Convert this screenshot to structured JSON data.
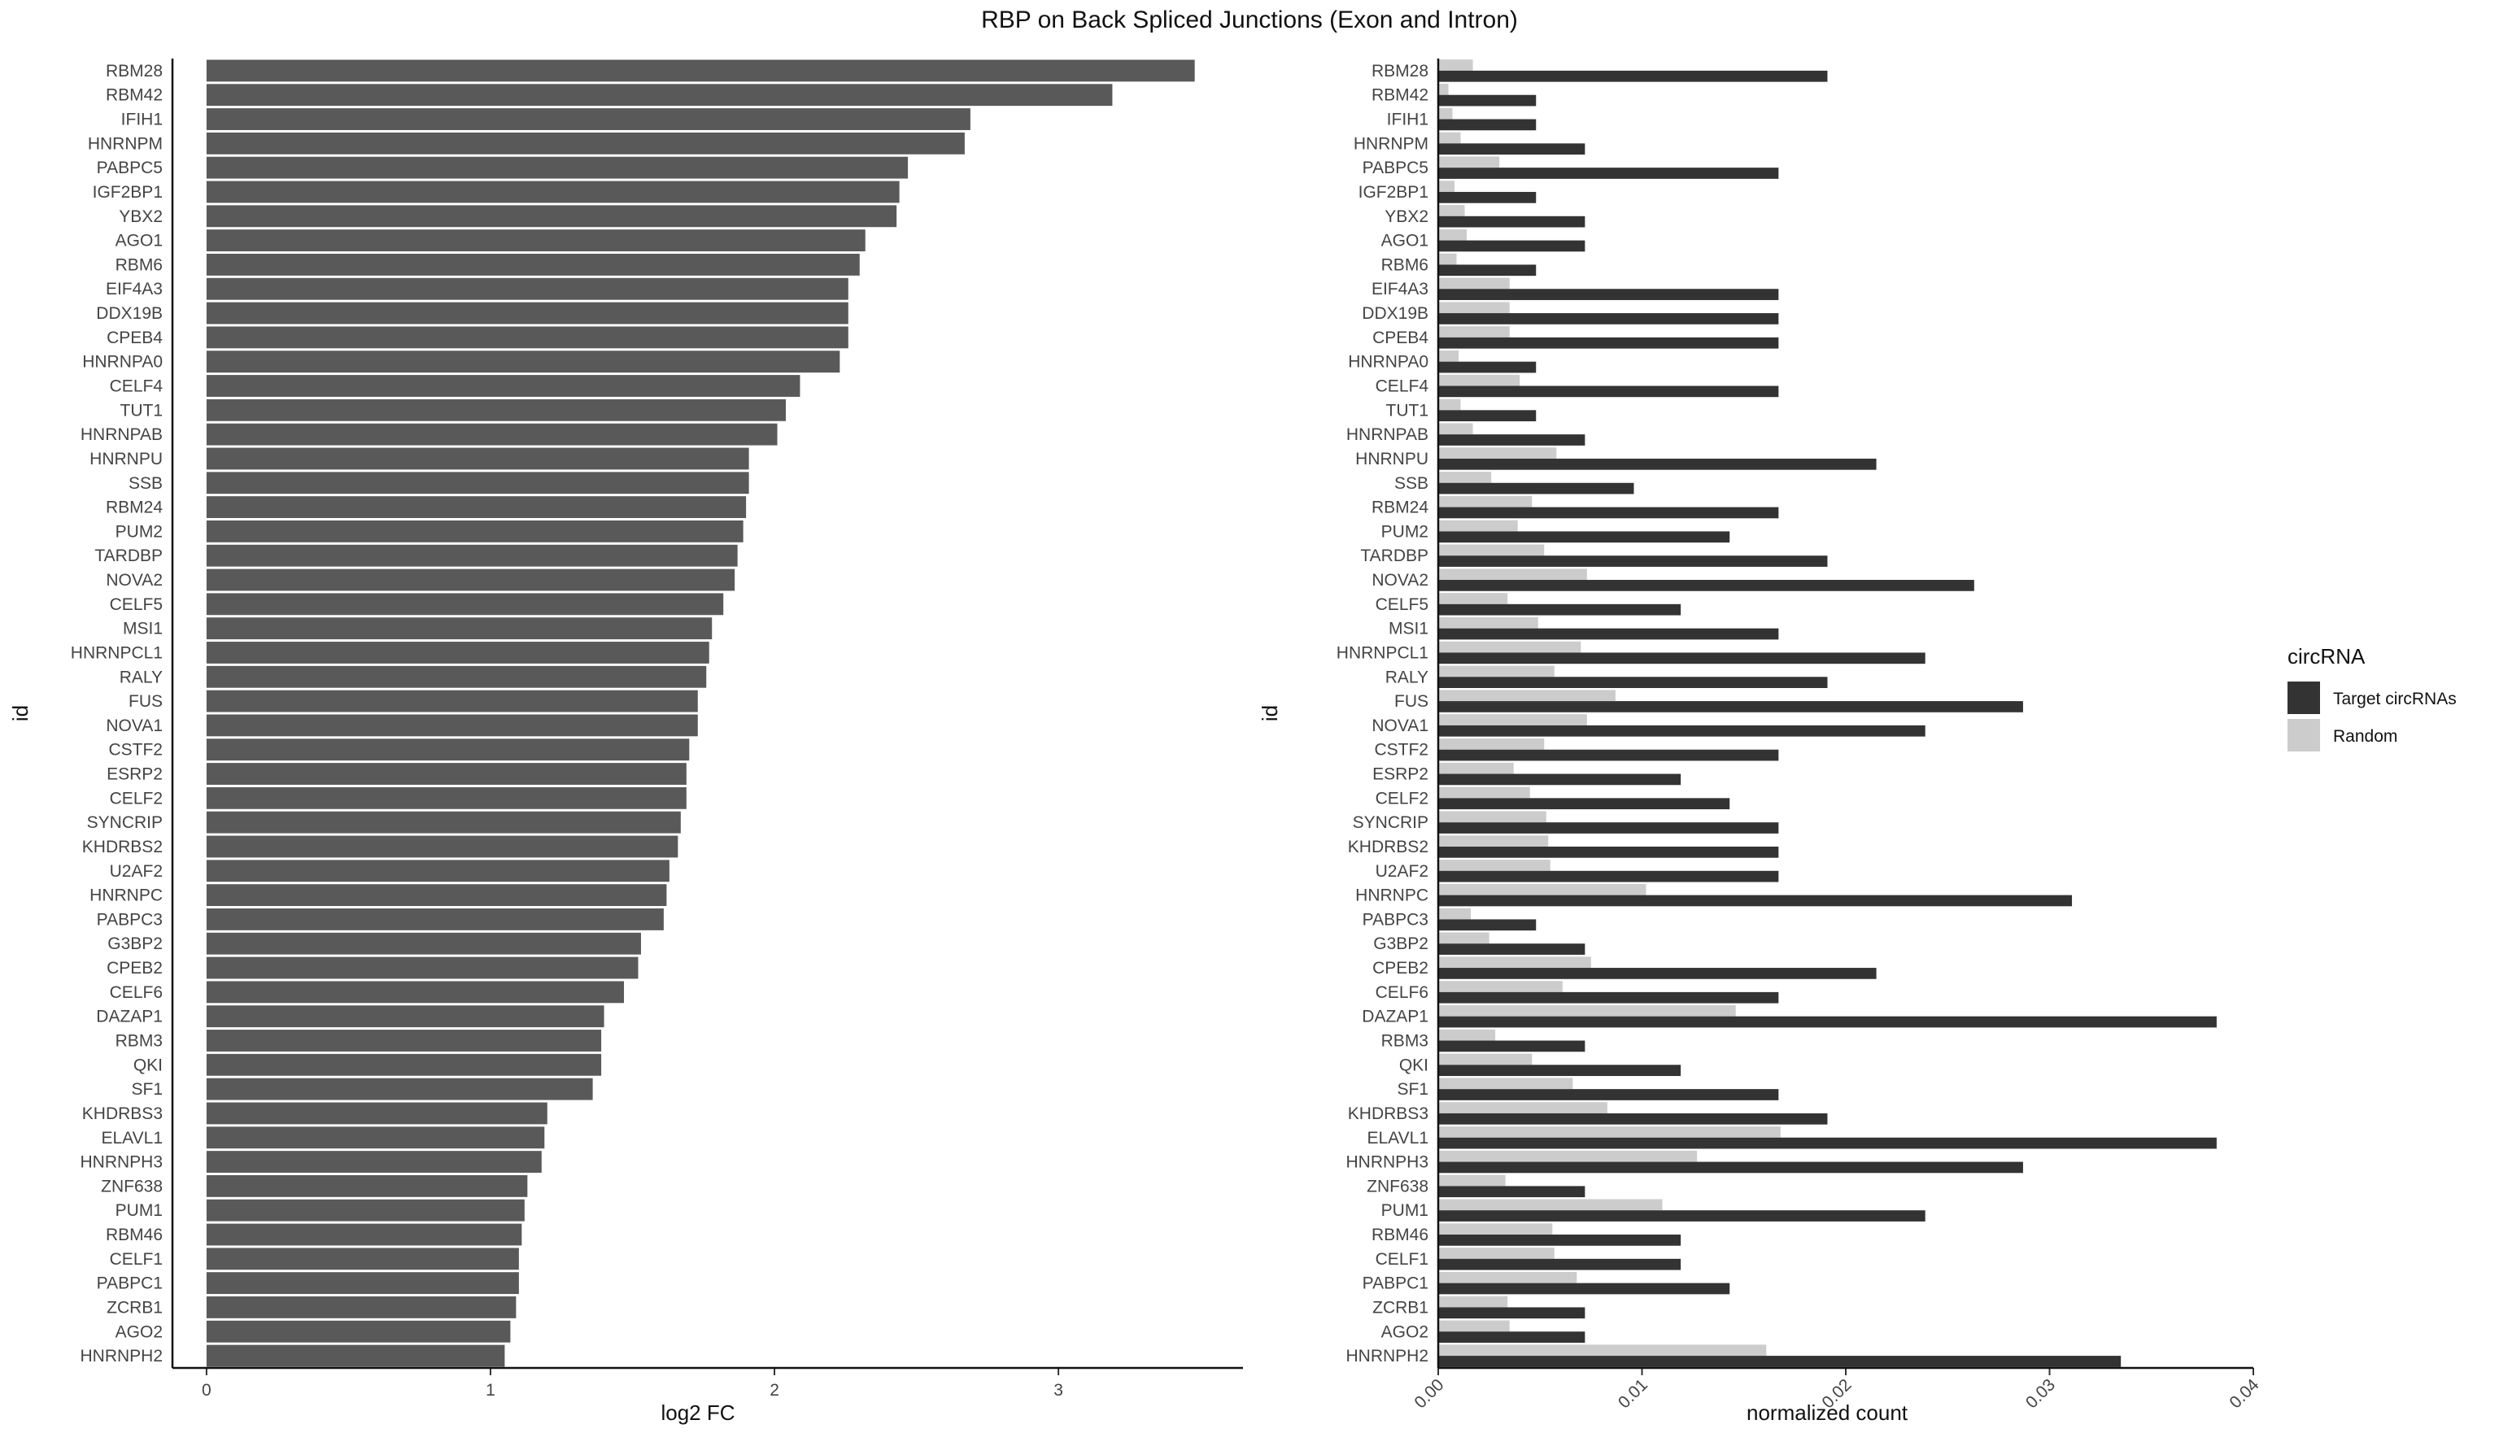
{
  "figure": {
    "title": "RBP on Back Spliced Junctions (Exon and Intron)"
  },
  "chart_data": [
    {
      "type": "bar",
      "orientation": "horizontal",
      "xlabel": "log2 FC",
      "ylabel": "id",
      "xlim": [
        -0.12,
        3.65
      ],
      "xticks": [
        "0",
        "1",
        "2",
        "3"
      ],
      "bar_color": "#595959",
      "categories": [
        "RBM28",
        "RBM42",
        "IFIH1",
        "HNRNPM",
        "PABPC5",
        "IGF2BP1",
        "YBX2",
        "AGO1",
        "RBM6",
        "EIF4A3",
        "DDX19B",
        "CPEB4",
        "HNRNPA0",
        "CELF4",
        "TUT1",
        "HNRNPAB",
        "HNRNPU",
        "SSB",
        "RBM24",
        "PUM2",
        "TARDBP",
        "NOVA2",
        "CELF5",
        "MSI1",
        "HNRNPCL1",
        "RALY",
        "FUS",
        "NOVA1",
        "CSTF2",
        "ESRP2",
        "CELF2",
        "SYNCRIP",
        "KHDRBS2",
        "U2AF2",
        "HNRNPC",
        "PABPC3",
        "G3BP2",
        "CPEB2",
        "CELF6",
        "DAZAP1",
        "RBM3",
        "QKI",
        "SF1",
        "KHDRBS3",
        "ELAVL1",
        "HNRNPH3",
        "ZNF638",
        "PUM1",
        "RBM46",
        "CELF1",
        "PABPC1",
        "ZCRB1",
        "AGO2",
        "HNRNPH2"
      ],
      "values": [
        3.48,
        3.19,
        2.69,
        2.67,
        2.47,
        2.44,
        2.43,
        2.32,
        2.3,
        2.26,
        2.26,
        2.26,
        2.23,
        2.09,
        2.04,
        2.01,
        1.91,
        1.91,
        1.9,
        1.89,
        1.87,
        1.86,
        1.82,
        1.78,
        1.77,
        1.76,
        1.73,
        1.73,
        1.7,
        1.69,
        1.69,
        1.67,
        1.66,
        1.63,
        1.62,
        1.61,
        1.53,
        1.52,
        1.47,
        1.4,
        1.39,
        1.39,
        1.36,
        1.2,
        1.19,
        1.18,
        1.13,
        1.12,
        1.11,
        1.1,
        1.1,
        1.09,
        1.07,
        1.05
      ]
    },
    {
      "type": "bar",
      "orientation": "horizontal",
      "grouped": true,
      "xlabel": "normalized count",
      "ylabel": "id",
      "xlim": [
        0,
        0.04
      ],
      "xticks": [
        "0.00",
        "0.01",
        "0.02",
        "0.03",
        "0.04"
      ],
      "categories": [
        "RBM28",
        "RBM42",
        "IFIH1",
        "HNRNPM",
        "PABPC5",
        "IGF2BP1",
        "YBX2",
        "AGO1",
        "RBM6",
        "EIF4A3",
        "DDX19B",
        "CPEB4",
        "HNRNPA0",
        "CELF4",
        "TUT1",
        "HNRNPAB",
        "HNRNPU",
        "SSB",
        "RBM24",
        "PUM2",
        "TARDBP",
        "NOVA2",
        "CELF5",
        "MSI1",
        "HNRNPCL1",
        "RALY",
        "FUS",
        "NOVA1",
        "CSTF2",
        "ESRP2",
        "CELF2",
        "SYNCRIP",
        "KHDRBS2",
        "U2AF2",
        "HNRNPC",
        "PABPC3",
        "G3BP2",
        "CPEB2",
        "CELF6",
        "DAZAP1",
        "RBM3",
        "QKI",
        "SF1",
        "KHDRBS3",
        "ELAVL1",
        "HNRNPH3",
        "ZNF638",
        "PUM1",
        "RBM46",
        "CELF1",
        "PABPC1",
        "ZCRB1",
        "AGO2",
        "HNRNPH2"
      ],
      "legend": {
        "title": "circRNA",
        "position": "right"
      },
      "series": [
        {
          "name": "Target circRNAs",
          "color": "#333333",
          "values": [
            0.0191,
            0.0048,
            0.0048,
            0.0072,
            0.0167,
            0.0048,
            0.0072,
            0.0072,
            0.0048,
            0.0167,
            0.0167,
            0.0167,
            0.0048,
            0.0167,
            0.0048,
            0.0072,
            0.0215,
            0.0096,
            0.0167,
            0.0143,
            0.0191,
            0.0263,
            0.0119,
            0.0167,
            0.0239,
            0.0191,
            0.0287,
            0.0239,
            0.0167,
            0.0119,
            0.0143,
            0.0167,
            0.0167,
            0.0167,
            0.0311,
            0.0048,
            0.0072,
            0.0215,
            0.0167,
            0.0382,
            0.0072,
            0.0119,
            0.0167,
            0.0191,
            0.0382,
            0.0287,
            0.0072,
            0.0239,
            0.0119,
            0.0119,
            0.0143,
            0.0072,
            0.0072,
            0.0335
          ]
        },
        {
          "name": "Random",
          "color": "#cccccc",
          "values": [
            0.0017,
            0.0005,
            0.0007,
            0.0011,
            0.003,
            0.0008,
            0.0013,
            0.0014,
            0.0009,
            0.0035,
            0.0035,
            0.0035,
            0.001,
            0.004,
            0.0011,
            0.0017,
            0.0058,
            0.0026,
            0.0046,
            0.0039,
            0.0052,
            0.0073,
            0.0034,
            0.0049,
            0.007,
            0.0057,
            0.0087,
            0.0073,
            0.0052,
            0.0037,
            0.0045,
            0.0053,
            0.0054,
            0.0055,
            0.0102,
            0.0016,
            0.0025,
            0.0075,
            0.0061,
            0.0146,
            0.0028,
            0.0046,
            0.0066,
            0.0083,
            0.0168,
            0.0127,
            0.0033,
            0.011,
            0.0056,
            0.0057,
            0.0068,
            0.0034,
            0.0035,
            0.0161
          ]
        }
      ]
    }
  ]
}
